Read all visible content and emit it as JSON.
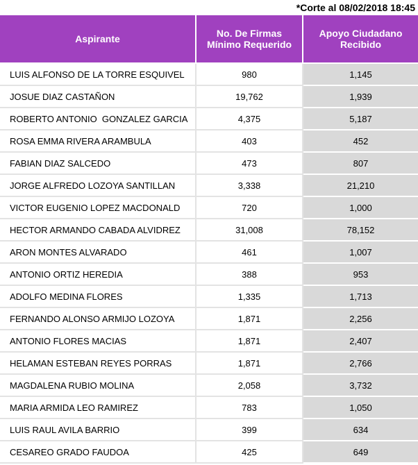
{
  "note": "*Corte al 08/02/2018 18:45",
  "table": {
    "headers": [
      "Aspirante",
      "No. De Firmas Mínimo Requerido",
      "Apoyo Ciudadano Recibido"
    ],
    "rows": [
      [
        "LUIS ALFONSO DE LA TORRE ESQUIVEL",
        "980",
        "1,145"
      ],
      [
        "JOSUE DIAZ CASTAÑON",
        "19,762",
        "1,939"
      ],
      [
        "ROBERTO ANTONIO  GONZALEZ GARCIA",
        "4,375",
        "5,187"
      ],
      [
        "ROSA EMMA RIVERA ARAMBULA",
        "403",
        "452"
      ],
      [
        "FABIAN DIAZ SALCEDO",
        "473",
        "807"
      ],
      [
        "JORGE ALFREDO LOZOYA SANTILLAN",
        "3,338",
        "21,210"
      ],
      [
        "VICTOR EUGENIO LOPEZ MACDONALD",
        "720",
        "1,000"
      ],
      [
        "HECTOR ARMANDO CABADA ALVIDREZ",
        "31,008",
        "78,152"
      ],
      [
        "ARON MONTES ALVARADO",
        "461",
        "1,007"
      ],
      [
        "ANTONIO ORTIZ HEREDIA",
        "388",
        "953"
      ],
      [
        "ADOLFO MEDINA FLORES",
        "1,335",
        "1,713"
      ],
      [
        "FERNANDO ALONSO ARMIJO LOZOYA",
        "1,871",
        "2,256"
      ],
      [
        "ANTONIO FLORES MACIAS",
        "1,871",
        "2,407"
      ],
      [
        "HELAMAN ESTEBAN REYES PORRAS",
        "1,871",
        "2,766"
      ],
      [
        "MAGDALENA RUBIO MOLINA",
        "2,058",
        "3,732"
      ],
      [
        "MARIA ARMIDA LEO RAMIREZ",
        "783",
        "1,050"
      ],
      [
        "LUIS RAUL AVILA BARRIO",
        "399",
        "634"
      ],
      [
        "CESAREO GRADO FAUDOA",
        "425",
        "649"
      ]
    ]
  }
}
